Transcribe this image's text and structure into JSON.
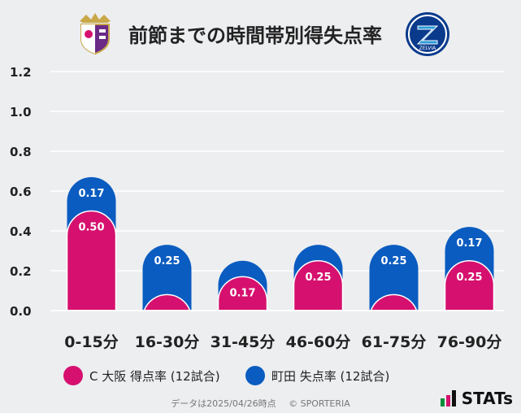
{
  "header": {
    "title": "前節までの時間帯別得失点率",
    "left_logo_alt": "C大阪",
    "right_logo_text": "ZELVIA"
  },
  "chart_data": {
    "type": "bar",
    "stacked": true,
    "title": "前節までの時間帯別得失点率",
    "categories": [
      "0-15分",
      "16-30分",
      "31-45分",
      "46-60分",
      "61-75分",
      "76-90分"
    ],
    "series": [
      {
        "name": "C大阪 得点率 (12試合)",
        "color": "#d6106e",
        "values": [
          0.5,
          0.08,
          0.17,
          0.25,
          0.08,
          0.25
        ],
        "labels": [
          "0.50",
          "",
          "0.17",
          "0.25",
          "",
          "0.25"
        ]
      },
      {
        "name": "町田 失点率 (12試合)",
        "color": "#0a5cc0",
        "values": [
          0.17,
          0.25,
          0.08,
          0.08,
          0.25,
          0.17
        ],
        "labels": [
          "0.17",
          "0.25",
          "",
          "",
          "0.25",
          "0.17"
        ]
      }
    ],
    "y_ticks": [
      "0.0",
      "0.2",
      "0.4",
      "0.6",
      "0.8",
      "1.0",
      "1.2"
    ],
    "ylim": [
      0,
      1.2
    ],
    "grid": true
  },
  "legend": [
    {
      "label": "C 大阪 得点率 (12試合)",
      "color": "#d6106e"
    },
    {
      "label": "町田 失点率 (12試合)",
      "color": "#0a5cc0"
    }
  ],
  "footer": {
    "data_date": "データは2025/04/26時点",
    "copyright": "© SPORTERIA"
  },
  "brand": {
    "name": "STATs"
  }
}
